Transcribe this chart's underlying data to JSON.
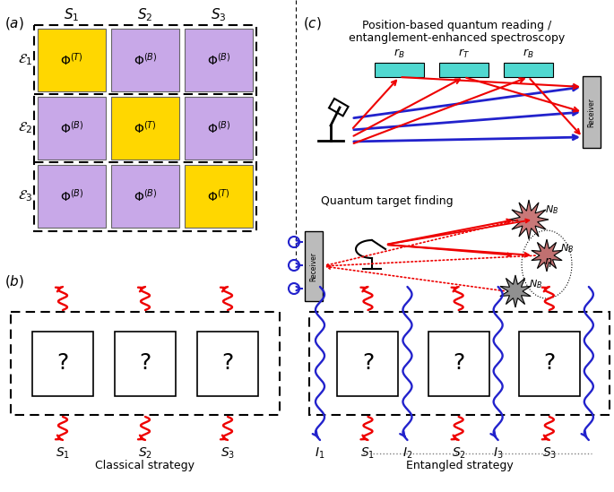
{
  "fig_width": 6.85,
  "fig_height": 5.49,
  "yellow": "#FFD700",
  "purple": "#C8A8E8",
  "cyan": "#50D8D0",
  "red": "#EE0000",
  "blue": "#2222CC",
  "gray_recv": "#AAAAAA",
  "grid_colors": [
    [
      "yellow",
      "purple",
      "purple"
    ],
    [
      "purple",
      "yellow",
      "purple"
    ],
    [
      "purple",
      "purple",
      "yellow"
    ]
  ],
  "grid_superscripts": [
    [
      "T",
      "B",
      "B"
    ],
    [
      "B",
      "T",
      "B"
    ],
    [
      "B",
      "B",
      "T"
    ]
  ]
}
